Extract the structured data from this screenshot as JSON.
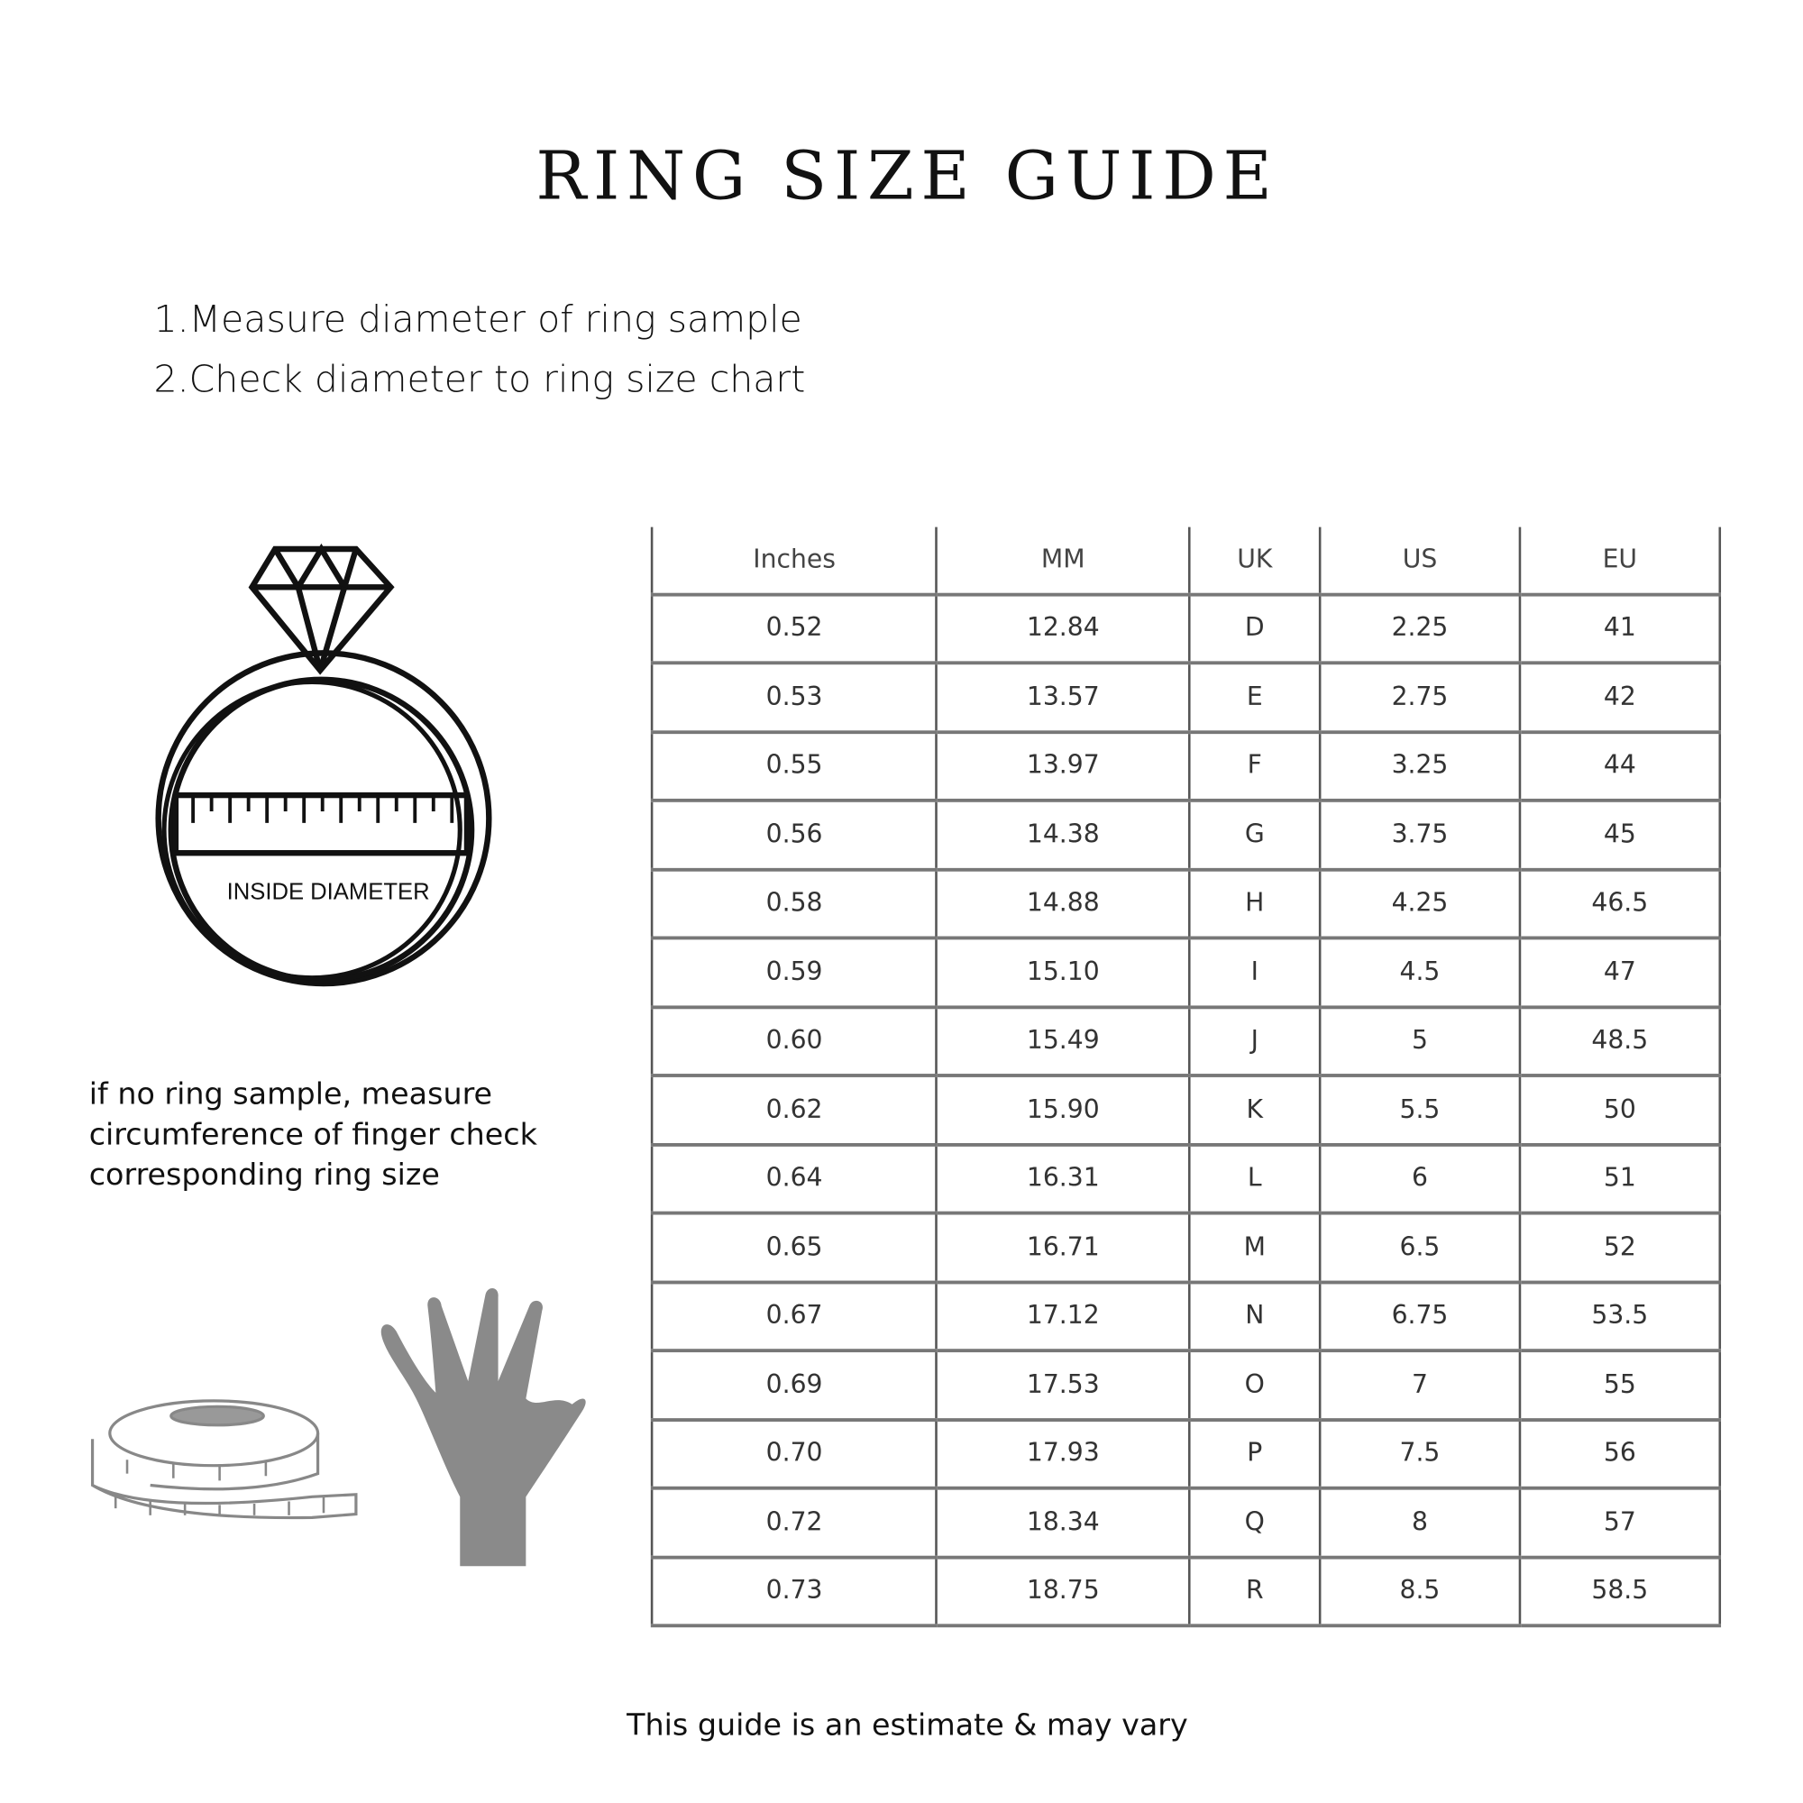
{
  "title": "RING SIZE GUIDE",
  "steps": [
    "1.Measure diameter of ring sample",
    "2.Check diameter to ring size chart"
  ],
  "diagram_label": "INSIDE DIAMETER",
  "alternative_text": [
    "if no ring sample, measure",
    "circumference of finger check",
    "corresponding ring size"
  ],
  "footer": "This guide is an estimate & may vary",
  "icons": {
    "ring": "diamond-ring-icon",
    "tape": "measuring-tape-icon",
    "hand": "hand-icon"
  },
  "colors": {
    "hand": "#8a8a8a",
    "text": "#111111"
  },
  "table": {
    "headers": [
      "Inches",
      "MM",
      "UK",
      "US",
      "EU"
    ],
    "rows": [
      [
        "0.52",
        "12.84",
        "D",
        "2.25",
        "41"
      ],
      [
        "0.53",
        "13.57",
        "E",
        "2.75",
        "42"
      ],
      [
        "0.55",
        "13.97",
        "F",
        "3.25",
        "44"
      ],
      [
        "0.56",
        "14.38",
        "G",
        "3.75",
        "45"
      ],
      [
        "0.58",
        "14.88",
        "H",
        "4.25",
        "46.5"
      ],
      [
        "0.59",
        "15.10",
        "I",
        "4.5",
        "47"
      ],
      [
        "0.60",
        "15.49",
        "J",
        "5",
        "48.5"
      ],
      [
        "0.62",
        "15.90",
        "K",
        "5.5",
        "50"
      ],
      [
        "0.64",
        "16.31",
        "L",
        "6",
        "51"
      ],
      [
        "0.65",
        "16.71",
        "M",
        "6.5",
        "52"
      ],
      [
        "0.67",
        "17.12",
        "N",
        "6.75",
        "53.5"
      ],
      [
        "0.69",
        "17.53",
        "O",
        "7",
        "55"
      ],
      [
        "0.70",
        "17.93",
        "P",
        "7.5",
        "56"
      ],
      [
        "0.72",
        "18.34",
        "Q",
        "8",
        "57"
      ],
      [
        "0.73",
        "18.75",
        "R",
        "8.5",
        "58.5"
      ]
    ]
  }
}
